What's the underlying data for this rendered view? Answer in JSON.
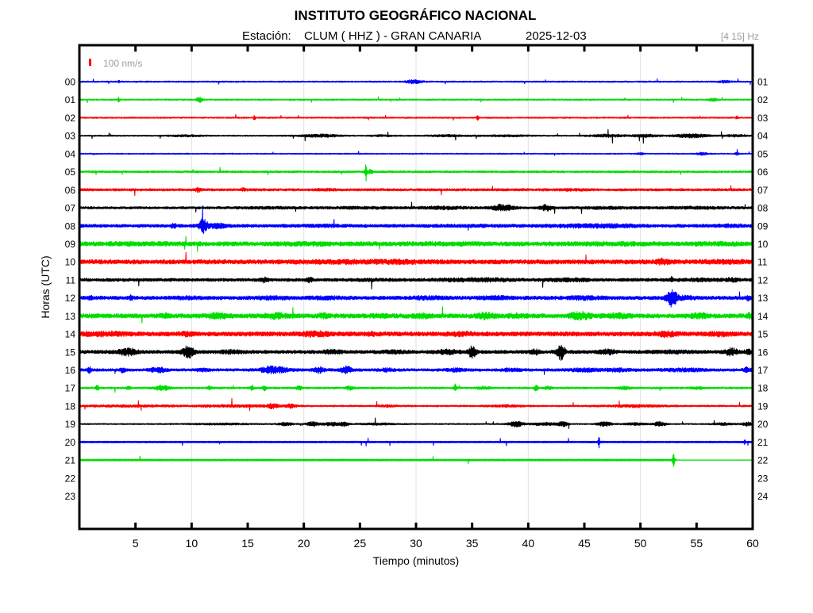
{
  "header": {
    "title": "INSTITUTO GEOGRÁFICO NACIONAL",
    "station_label": "Estación:",
    "station": "CLUM ( HHZ ) - GRAN CANARIA",
    "date": "2025-12-03",
    "filter": "[4 15] Hz"
  },
  "legend": {
    "scale_label": "100 nm/s",
    "scale_color": "#ff0000"
  },
  "axes": {
    "x_label": "Tiempo (minutos)",
    "y_label": "Horas (UTC)",
    "x_ticks": [
      5,
      10,
      15,
      20,
      25,
      30,
      35,
      40,
      45,
      50,
      55,
      60
    ],
    "gridlines": [
      10,
      20,
      30,
      40,
      50
    ],
    "x_range": [
      0,
      60
    ]
  },
  "colors": {
    "frame": "#000000",
    "grid": "#e0e0e0",
    "muted_text": "#9c9c9c"
  },
  "chart_data": {
    "type": "line",
    "title": "INSTITUTO GEOGRÁFICO NACIONAL — Estación: CLUM ( HHZ ) - GRAN CANARIA — 2025-12-03",
    "xlabel": "Tiempo (minutos)",
    "ylabel": "Horas (UTC)",
    "x_range": [
      0,
      60
    ],
    "grid_minutes": [
      10,
      20,
      30,
      40,
      50
    ],
    "scale_bar": "100 nm/s",
    "bandpass": "[4 15] Hz",
    "rows": [
      {
        "hour_left": "00",
        "hour_right": "01",
        "color": "#0000ff",
        "base": 0.9,
        "pops": 0.004,
        "events": [
          {
            "t": 3.5,
            "w": 0.1,
            "a": 1.5
          },
          {
            "t": 29.8,
            "w": 0.7,
            "a": 2.2
          },
          {
            "t": 57.5,
            "w": 0.5,
            "a": 1.4
          }
        ]
      },
      {
        "hour_left": "01",
        "hour_right": "02",
        "color": "#00dd00",
        "base": 0.9,
        "pops": 0.004,
        "events": [
          {
            "t": 3.5,
            "w": 0.08,
            "a": 2.5
          },
          {
            "t": 10.7,
            "w": 0.25,
            "a": 3.2
          },
          {
            "t": 56.5,
            "w": 0.4,
            "a": 1.5
          }
        ]
      },
      {
        "hour_left": "02",
        "hour_right": "03",
        "color": "#ff0000",
        "base": 0.9,
        "pops": 0.005,
        "events": [
          {
            "t": 15.6,
            "w": 0.08,
            "a": 3.5
          },
          {
            "t": 35.5,
            "w": 0.1,
            "a": 3.0
          },
          {
            "t": 58.6,
            "w": 0.1,
            "a": 2.0
          }
        ]
      },
      {
        "hour_left": "03",
        "hour_right": "04",
        "color": "#000000",
        "base": 0.8,
        "pops": 0.006,
        "events": [
          {
            "t": 9.5,
            "w": 1.5,
            "a": 0.9
          },
          {
            "t": 21.5,
            "w": 1.8,
            "a": 1.6
          },
          {
            "t": 27,
            "w": 1,
            "a": 0.8
          },
          {
            "t": 33,
            "w": 2,
            "a": 0.9
          },
          {
            "t": 38,
            "w": 2,
            "a": 0.9
          },
          {
            "t": 47,
            "w": 1.5,
            "a": 1.5
          },
          {
            "t": 50.5,
            "w": 1.2,
            "a": 1.6
          },
          {
            "t": 54.5,
            "w": 1.5,
            "a": 2.2
          },
          {
            "t": 58.5,
            "w": 1,
            "a": 1.3
          }
        ]
      },
      {
        "hour_left": "04",
        "hour_right": "05",
        "color": "#0000ff",
        "base": 0.7,
        "pops": 0.004,
        "events": [
          {
            "t": 50,
            "w": 0.3,
            "a": 1.2
          },
          {
            "t": 55.5,
            "w": 0.5,
            "a": 1.4
          },
          {
            "t": 58.6,
            "w": 0.15,
            "a": 1.8
          }
        ]
      },
      {
        "hour_left": "05",
        "hour_right": "06",
        "color": "#00dd00",
        "base": 1.3,
        "pops": 0.003,
        "events": [
          {
            "t": 25.55,
            "w": 0.07,
            "a": 16
          },
          {
            "t": 25.9,
            "w": 0.3,
            "a": 2
          }
        ]
      },
      {
        "hour_left": "06",
        "hour_right": "07",
        "color": "#ff0000",
        "base": 1.6,
        "pops": 0.002,
        "events": [
          {
            "t": 10.6,
            "w": 0.3,
            "a": 1.8
          },
          {
            "t": 14.6,
            "w": 0.25,
            "a": 1.6
          },
          {
            "t": 22,
            "w": 1,
            "a": 0.7
          },
          {
            "t": 44,
            "w": 1,
            "a": 0.6
          }
        ]
      },
      {
        "hour_left": "07",
        "hour_right": "08",
        "color": "#000000",
        "base": 1.5,
        "pops": 0.002,
        "events": [
          {
            "t": 17,
            "w": 3,
            "a": 0.6
          },
          {
            "t": 25,
            "w": 3,
            "a": 0.7
          },
          {
            "t": 32.5,
            "w": 2,
            "a": 1.2
          },
          {
            "t": 37.7,
            "w": 0.9,
            "a": 3.6
          },
          {
            "t": 41.6,
            "w": 0.5,
            "a": 3.2
          },
          {
            "t": 47,
            "w": 3,
            "a": 0.8
          },
          {
            "t": 55,
            "w": 3,
            "a": 0.8
          }
        ]
      },
      {
        "hour_left": "08",
        "hour_right": "09",
        "color": "#0000ff",
        "base": 2.0,
        "pops": 0.002,
        "events": [
          {
            "t": 8.4,
            "w": 0.2,
            "a": 2.5
          },
          {
            "t": 11.05,
            "w": 0.35,
            "a": 8.0
          },
          {
            "t": 12.3,
            "w": 0.8,
            "a": 2.0
          },
          {
            "t": 22,
            "w": 2,
            "a": 0.6
          },
          {
            "t": 35,
            "w": 3,
            "a": 0.6
          },
          {
            "t": 44.5,
            "w": 2.5,
            "a": 1.2
          },
          {
            "t": 48,
            "w": 2,
            "a": 1.0
          },
          {
            "t": 58,
            "w": 1.5,
            "a": 0.8
          }
        ]
      },
      {
        "hour_left": "09",
        "hour_right": "10",
        "color": "#00dd00",
        "base": 2.8,
        "pops": 0.001,
        "events": [
          {
            "t": 5,
            "w": 3,
            "a": 0.5
          },
          {
            "t": 20,
            "w": 3,
            "a": 0.5
          },
          {
            "t": 33,
            "w": 3,
            "a": 0.5
          },
          {
            "t": 47,
            "w": 3,
            "a": 0.5
          },
          {
            "t": 57,
            "w": 2,
            "a": 0.6
          }
        ]
      },
      {
        "hour_left": "10",
        "hour_right": "11",
        "color": "#ff0000",
        "base": 2.8,
        "pops": 0.001,
        "events": [
          {
            "t": 24,
            "w": 4,
            "a": 0.8
          },
          {
            "t": 29,
            "w": 2,
            "a": 0.8
          },
          {
            "t": 52,
            "w": 0.6,
            "a": 2.2
          },
          {
            "t": 57.5,
            "w": 2,
            "a": 0.8
          }
        ]
      },
      {
        "hour_left": "11",
        "hour_right": "12",
        "color": "#000000",
        "base": 2.0,
        "pops": 0.002,
        "events": [
          {
            "t": 16.5,
            "w": 0.3,
            "a": 2.6
          },
          {
            "t": 20.5,
            "w": 0.3,
            "a": 2.2
          },
          {
            "t": 26,
            "w": 2,
            "a": 0.5
          },
          {
            "t": 34,
            "w": 2.5,
            "a": 1.0
          },
          {
            "t": 37,
            "w": 1.5,
            "a": 1.0
          },
          {
            "t": 43.5,
            "w": 2,
            "a": 1.0
          },
          {
            "t": 52.8,
            "w": 0.12,
            "a": 3.2
          },
          {
            "t": 55.5,
            "w": 2,
            "a": 0.8
          },
          {
            "t": 58.2,
            "w": 0.5,
            "a": 1.4
          }
        ]
      },
      {
        "hour_left": "12",
        "hour_right": "13",
        "color": "#0000ff",
        "base": 2.3,
        "pops": 0.002,
        "events": [
          {
            "t": 1.0,
            "w": 0.15,
            "a": 2.6
          },
          {
            "t": 4.6,
            "w": 0.12,
            "a": 3.2
          },
          {
            "t": 9.5,
            "w": 1,
            "a": 0.8
          },
          {
            "t": 17,
            "w": 1.5,
            "a": 1.0
          },
          {
            "t": 22,
            "w": 1.5,
            "a": 0.8
          },
          {
            "t": 31,
            "w": 1.5,
            "a": 1.1
          },
          {
            "t": 37,
            "w": 1.5,
            "a": 1.1
          },
          {
            "t": 45,
            "w": 1.5,
            "a": 1.2
          },
          {
            "t": 52.8,
            "w": 0.45,
            "a": 10.0
          },
          {
            "t": 54,
            "w": 0.8,
            "a": 1.5
          },
          {
            "t": 59.6,
            "w": 0.2,
            "a": 2.5
          }
        ]
      },
      {
        "hour_left": "13",
        "hour_right": "14",
        "color": "#00dd00",
        "base": 2.8,
        "pops": 0.001,
        "events": [
          {
            "t": 7.5,
            "w": 0.6,
            "a": 1.5
          },
          {
            "t": 12.3,
            "w": 0.9,
            "a": 2.2
          },
          {
            "t": 17.5,
            "w": 1.2,
            "a": 1.8
          },
          {
            "t": 21.7,
            "w": 0.4,
            "a": 1.8
          },
          {
            "t": 27,
            "w": 1,
            "a": 1.4
          },
          {
            "t": 30.5,
            "w": 0.8,
            "a": 1.5
          },
          {
            "t": 36.2,
            "w": 0.9,
            "a": 2.6
          },
          {
            "t": 39,
            "w": 0.8,
            "a": 1.6
          },
          {
            "t": 44.6,
            "w": 0.9,
            "a": 3.4
          },
          {
            "t": 48,
            "w": 1,
            "a": 1.6
          },
          {
            "t": 55.3,
            "w": 0.9,
            "a": 1.7
          },
          {
            "t": 59.7,
            "w": 0.2,
            "a": 2.2
          }
        ]
      },
      {
        "hour_left": "14",
        "hour_right": "15",
        "color": "#ff0000",
        "base": 2.8,
        "pops": 0.001,
        "events": [
          {
            "t": 2.5,
            "w": 2,
            "a": 1.3
          },
          {
            "t": 9.6,
            "w": 0.4,
            "a": 1.6
          },
          {
            "t": 21,
            "w": 1.2,
            "a": 2.0
          },
          {
            "t": 26,
            "w": 0.5,
            "a": 1.2
          },
          {
            "t": 34,
            "w": 1.2,
            "a": 1.0
          },
          {
            "t": 52.3,
            "w": 0.9,
            "a": 1.8
          },
          {
            "t": 57,
            "w": 1.2,
            "a": 1.2
          }
        ]
      },
      {
        "hour_left": "15",
        "hour_right": "16",
        "color": "#000000",
        "base": 2.2,
        "pops": 0.002,
        "events": [
          {
            "t": 4.3,
            "w": 0.8,
            "a": 3.4
          },
          {
            "t": 9.7,
            "w": 0.5,
            "a": 6.5
          },
          {
            "t": 13.5,
            "w": 0.8,
            "a": 1.5
          },
          {
            "t": 22.5,
            "w": 0.8,
            "a": 1.4
          },
          {
            "t": 28,
            "w": 1,
            "a": 1.0
          },
          {
            "t": 32.8,
            "w": 0.9,
            "a": 2.0
          },
          {
            "t": 35.0,
            "w": 0.35,
            "a": 6.5
          },
          {
            "t": 40.6,
            "w": 0.4,
            "a": 2.2
          },
          {
            "t": 42.9,
            "w": 0.35,
            "a": 9.5
          },
          {
            "t": 47,
            "w": 0.7,
            "a": 2.0
          },
          {
            "t": 53,
            "w": 1.5,
            "a": 0.8
          },
          {
            "t": 58.1,
            "w": 0.5,
            "a": 3.8
          },
          {
            "t": 59.6,
            "w": 0.3,
            "a": 2.0
          }
        ]
      },
      {
        "hour_left": "16",
        "hour_right": "17",
        "color": "#0000ff",
        "base": 1.8,
        "pops": 0.002,
        "events": [
          {
            "t": 0.9,
            "w": 0.15,
            "a": 3.4
          },
          {
            "t": 3.9,
            "w": 0.2,
            "a": 2.8
          },
          {
            "t": 7.0,
            "w": 0.7,
            "a": 2.6
          },
          {
            "t": 11,
            "w": 0.5,
            "a": 1.4
          },
          {
            "t": 17.3,
            "w": 1.1,
            "a": 4.0
          },
          {
            "t": 21.3,
            "w": 0.5,
            "a": 3.0
          },
          {
            "t": 23.8,
            "w": 0.5,
            "a": 3.6
          },
          {
            "t": 27.5,
            "w": 0.7,
            "a": 1.4
          },
          {
            "t": 33.5,
            "w": 0.8,
            "a": 1.2
          },
          {
            "t": 38.5,
            "w": 0.8,
            "a": 1.2
          },
          {
            "t": 45,
            "w": 1.2,
            "a": 1.5
          },
          {
            "t": 48,
            "w": 1.2,
            "a": 1.5
          },
          {
            "t": 54,
            "w": 2,
            "a": 1.2
          },
          {
            "t": 59.5,
            "w": 0.3,
            "a": 2.6
          }
        ]
      },
      {
        "hour_left": "17",
        "hour_right": "18",
        "color": "#00dd00",
        "base": 1.3,
        "pops": 0.003,
        "events": [
          {
            "t": 1.6,
            "w": 0.12,
            "a": 3.8
          },
          {
            "t": 4.4,
            "w": 0.15,
            "a": 2.2
          },
          {
            "t": 7.4,
            "w": 0.7,
            "a": 2.4
          },
          {
            "t": 11.6,
            "w": 0.2,
            "a": 2.0
          },
          {
            "t": 15.4,
            "w": 0.15,
            "a": 2.8
          },
          {
            "t": 16.5,
            "w": 0.15,
            "a": 2.8
          },
          {
            "t": 19.6,
            "w": 0.3,
            "a": 2.0
          },
          {
            "t": 24.1,
            "w": 0.3,
            "a": 2.0
          },
          {
            "t": 33.5,
            "w": 0.12,
            "a": 4.5
          },
          {
            "t": 36,
            "w": 0.5,
            "a": 1.4
          },
          {
            "t": 40.7,
            "w": 0.15,
            "a": 3.8
          },
          {
            "t": 41.8,
            "w": 0.3,
            "a": 1.6
          },
          {
            "t": 48.6,
            "w": 0.5,
            "a": 1.5
          },
          {
            "t": 55,
            "w": 0.6,
            "a": 1.1
          }
        ]
      },
      {
        "hour_left": "18",
        "hour_right": "19",
        "color": "#ff0000",
        "base": 1.1,
        "pops": 0.004,
        "events": [
          {
            "t": 5,
            "w": 5,
            "a": 0.7
          },
          {
            "t": 14,
            "w": 3,
            "a": 1.0
          },
          {
            "t": 17.2,
            "w": 0.5,
            "a": 2.6
          },
          {
            "t": 18.8,
            "w": 0.5,
            "a": 2.2
          },
          {
            "t": 27.5,
            "w": 0.8,
            "a": 0.9
          },
          {
            "t": 38,
            "w": 1.5,
            "a": 0.9
          },
          {
            "t": 49.5,
            "w": 2.5,
            "a": 1.0
          }
        ]
      },
      {
        "hour_left": "19",
        "hour_right": "20",
        "color": "#000000",
        "base": 0.8,
        "pops": 0.004,
        "events": [
          {
            "t": 12.5,
            "w": 2.5,
            "a": 0.8
          },
          {
            "t": 18.4,
            "w": 0.6,
            "a": 1.8
          },
          {
            "t": 20.8,
            "w": 0.5,
            "a": 2.8
          },
          {
            "t": 22.4,
            "w": 0.7,
            "a": 2.2
          },
          {
            "t": 23.6,
            "w": 0.4,
            "a": 2.4
          },
          {
            "t": 26.5,
            "w": 1.5,
            "a": 0.9
          },
          {
            "t": 38.9,
            "w": 0.7,
            "a": 3.0
          },
          {
            "t": 41.5,
            "w": 1.2,
            "a": 1.6
          },
          {
            "t": 43.1,
            "w": 0.4,
            "a": 2.6
          },
          {
            "t": 46.8,
            "w": 0.6,
            "a": 2.8
          },
          {
            "t": 49.5,
            "w": 1,
            "a": 1.3
          },
          {
            "t": 51.7,
            "w": 0.5,
            "a": 2.8
          },
          {
            "t": 57.5,
            "w": 1,
            "a": 1.2
          },
          {
            "t": 59.5,
            "w": 0.4,
            "a": 2.2
          }
        ]
      },
      {
        "hour_left": "20",
        "hour_right": "21",
        "color": "#0000ff",
        "base": 1.1,
        "flat": true,
        "pops": 0.006,
        "events": [
          {
            "t": 46.3,
            "w": 0.07,
            "a": 6.5
          },
          {
            "t": 59.3,
            "w": 0.06,
            "a": 2.5
          }
        ]
      },
      {
        "hour_left": "21",
        "hour_right": "22",
        "color": "#00dd00",
        "base": 1.1,
        "flat": true,
        "pops": 0.005,
        "cut_t": 53.2,
        "cut_base": 0.25,
        "events": [
          {
            "t": 52.95,
            "w": 0.08,
            "a": 9
          }
        ]
      },
      {
        "hour_left": "22",
        "hour_right": "23",
        "color": "#000000",
        "empty": true,
        "base": 0,
        "pops": 0,
        "events": []
      },
      {
        "hour_left": "23",
        "hour_right": "24",
        "color": "#000000",
        "empty": true,
        "base": 0,
        "pops": 0,
        "events": []
      }
    ]
  }
}
